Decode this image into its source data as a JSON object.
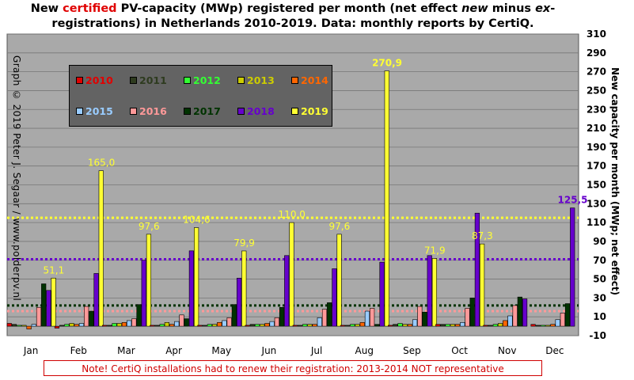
{
  "title": {
    "pre": "New ",
    "highlight": "certified",
    "post1": " PV-capacity (MWp) registered per month (net effect ",
    "em1": "new",
    "post2": " minus ",
    "em2": "ex",
    "post3": "-",
    "line2": "registrations) in Netherlands 2010-2019. Data: monthly reports by CertiQ."
  },
  "side_credit": "Graph © 2019 Peter J. Segaar / www.polderpv.nl",
  "note": "Note! CertiQ installations  had to renew their registration: 2013-2014 NOT representative",
  "colors": {
    "plot_bg": "#a9a9a9",
    "legend_bg": "#636363"
  },
  "chart_data": {
    "type": "bar",
    "ylabel": "New capacity per month (MWp; net effect)",
    "ylim": [
      -10,
      310
    ],
    "yticks": [
      -10,
      10,
      30,
      50,
      70,
      90,
      110,
      130,
      150,
      170,
      190,
      210,
      230,
      250,
      270,
      290,
      310
    ],
    "grid": "horizontal",
    "legend_placement": "top-left",
    "categories": [
      "Jan",
      "Feb",
      "Mar",
      "Apr",
      "May",
      "Jun",
      "Jul",
      "Aug",
      "Sep",
      "Oct",
      "Nov",
      "Dec"
    ],
    "series": [
      {
        "name": "2010",
        "color": "#e00000",
        "values": [
          3,
          -2,
          1,
          1,
          1,
          1,
          1,
          1,
          1,
          2,
          1,
          2
        ]
      },
      {
        "name": "2011",
        "color": "#2e3b1f",
        "values": [
          2,
          1,
          1,
          1,
          1,
          2,
          1,
          1,
          2,
          2,
          1,
          1
        ]
      },
      {
        "name": "2012",
        "color": "#33ff33",
        "values": [
          1,
          2,
          3,
          2,
          2,
          2,
          2,
          2,
          3,
          2,
          2,
          1
        ]
      },
      {
        "name": "2013",
        "color": "#cccc00",
        "values": [
          1,
          3,
          3,
          4,
          2,
          2,
          2,
          2,
          2,
          2,
          3,
          1
        ]
      },
      {
        "name": "2014",
        "color": "#ff6600",
        "values": [
          -3,
          2,
          4,
          2,
          4,
          3,
          2,
          4,
          2,
          2,
          6,
          2
        ]
      },
      {
        "name": "2015",
        "color": "#99ccff",
        "values": [
          2,
          3,
          6,
          5,
          6,
          5,
          9,
          16,
          7,
          4,
          11,
          7
        ]
      },
      {
        "name": "2016",
        "color": "#ff9999",
        "values": [
          20,
          21,
          8,
          12,
          9,
          9,
          18,
          19,
          21,
          19,
          22,
          14
        ]
      },
      {
        "name": "2017",
        "color": "#003300",
        "values": [
          45,
          16,
          23,
          8,
          23,
          20,
          25,
          2,
          15,
          30,
          31,
          24
        ]
      },
      {
        "name": "2018",
        "color": "#6600cc",
        "values": [
          38,
          56,
          70,
          80,
          51,
          75,
          61,
          68,
          75,
          120,
          29,
          125.5
        ]
      },
      {
        "name": "2019",
        "color": "#ffff33",
        "values": [
          51.1,
          165.0,
          97.6,
          104.6,
          79.9,
          110.0,
          97.6,
          270.9,
          71.9,
          87.3,
          null,
          null
        ]
      }
    ],
    "data_labels": [
      {
        "month": "Jan",
        "series": "2019",
        "text": "51,1"
      },
      {
        "month": "Feb",
        "series": "2019",
        "text": "165,0"
      },
      {
        "month": "Mar",
        "series": "2019",
        "text": "97,6"
      },
      {
        "month": "Apr",
        "series": "2019",
        "text": "104,6"
      },
      {
        "month": "May",
        "series": "2019",
        "text": "79,9"
      },
      {
        "month": "Jun",
        "series": "2019",
        "text": "110,0"
      },
      {
        "month": "Jul",
        "series": "2019",
        "text": "97,6"
      },
      {
        "month": "Aug",
        "series": "2019",
        "text": "270,9"
      },
      {
        "month": "Sep",
        "series": "2019",
        "text": "71,9"
      },
      {
        "month": "Oct",
        "series": "2019",
        "text": "87,3"
      },
      {
        "month": "Dec",
        "series": "2018",
        "text": "125,5"
      }
    ],
    "reference_lines": [
      {
        "value": 115,
        "color": "#ffff33"
      },
      {
        "value": 71,
        "color": "#6600cc"
      },
      {
        "value": 22,
        "color": "#003300"
      },
      {
        "value": 16,
        "color": "#ff9999"
      }
    ]
  }
}
